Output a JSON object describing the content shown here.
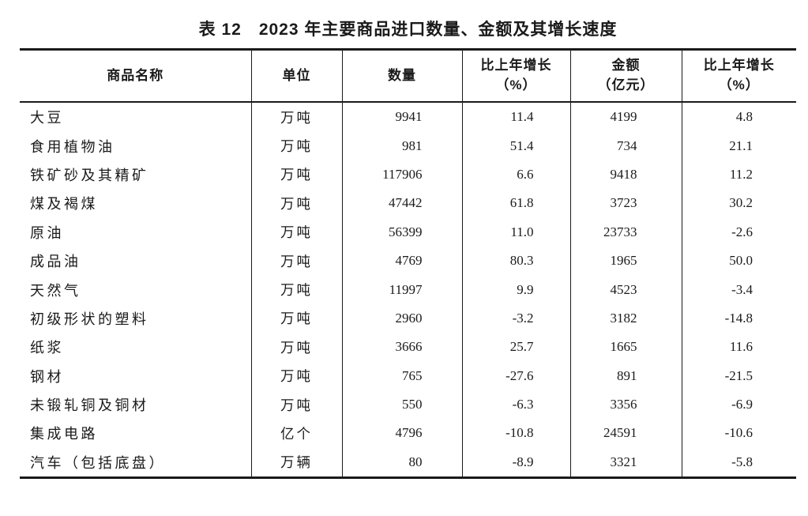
{
  "page": {
    "title": "表 12　2023 年主要商品进口数量、金额及其增长速度"
  },
  "colors": {
    "text": "#1a1a1a",
    "border": "#1a1a1a",
    "background": "#ffffff"
  },
  "table": {
    "headers": {
      "name": "商品名称",
      "unit": "单位",
      "quantity": "数量",
      "quantity_growth_line1": "比上年增长",
      "quantity_growth_line2": "（%）",
      "amount_line1": "金额",
      "amount_line2": "（亿元）",
      "amount_growth_line1": "比上年增长",
      "amount_growth_line2": "（%）"
    },
    "rows": [
      {
        "name": "大豆",
        "unit": "万吨",
        "quantity": "9941",
        "quantity_growth": "11.4",
        "amount": "4199",
        "amount_growth": "4.8"
      },
      {
        "name": "食用植物油",
        "unit": "万吨",
        "quantity": "981",
        "quantity_growth": "51.4",
        "amount": "734",
        "amount_growth": "21.1"
      },
      {
        "name": "铁矿砂及其精矿",
        "unit": "万吨",
        "quantity": "117906",
        "quantity_growth": "6.6",
        "amount": "9418",
        "amount_growth": "11.2"
      },
      {
        "name": "煤及褐煤",
        "unit": "万吨",
        "quantity": "47442",
        "quantity_growth": "61.8",
        "amount": "3723",
        "amount_growth": "30.2"
      },
      {
        "name": "原油",
        "unit": "万吨",
        "quantity": "56399",
        "quantity_growth": "11.0",
        "amount": "23733",
        "amount_growth": "-2.6"
      },
      {
        "name": "成品油",
        "unit": "万吨",
        "quantity": "4769",
        "quantity_growth": "80.3",
        "amount": "1965",
        "amount_growth": "50.0"
      },
      {
        "name": "天然气",
        "unit": "万吨",
        "quantity": "11997",
        "quantity_growth": "9.9",
        "amount": "4523",
        "amount_growth": "-3.4"
      },
      {
        "name": "初级形状的塑料",
        "unit": "万吨",
        "quantity": "2960",
        "quantity_growth": "-3.2",
        "amount": "3182",
        "amount_growth": "-14.8"
      },
      {
        "name": "纸浆",
        "unit": "万吨",
        "quantity": "3666",
        "quantity_growth": "25.7",
        "amount": "1665",
        "amount_growth": "11.6"
      },
      {
        "name": "钢材",
        "unit": "万吨",
        "quantity": "765",
        "quantity_growth": "-27.6",
        "amount": "891",
        "amount_growth": "-21.5"
      },
      {
        "name": "未锻轧铜及铜材",
        "unit": "万吨",
        "quantity": "550",
        "quantity_growth": "-6.3",
        "amount": "3356",
        "amount_growth": "-6.9"
      },
      {
        "name": "集成电路",
        "unit": "亿个",
        "quantity": "4796",
        "quantity_growth": "-10.8",
        "amount": "24591",
        "amount_growth": "-10.6"
      },
      {
        "name": "汽车（包括底盘）",
        "unit": "万辆",
        "quantity": "80",
        "quantity_growth": "-8.9",
        "amount": "3321",
        "amount_growth": "-5.8"
      }
    ]
  }
}
